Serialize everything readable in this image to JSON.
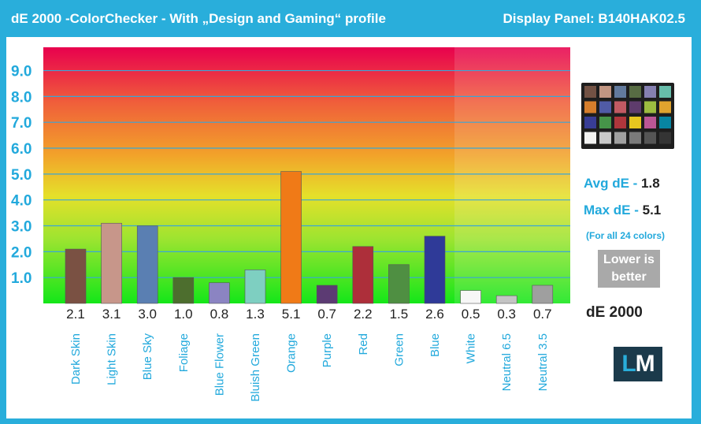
{
  "header": {
    "title": "dE 2000 -ColorChecker - With „Design and Gaming“ profile",
    "panel": "Display Panel: B140HAK02.5"
  },
  "sidebar": {
    "avg_label": "Avg dE - ",
    "avg_value": "1.8",
    "max_label": "Max dE - ",
    "max_value": "5.1",
    "note": "(For all 24 colors)",
    "lower_line1": "Lower is",
    "lower_line2": "better",
    "metric": "dE 2000",
    "logo_l": "L",
    "logo_m": "M"
  },
  "colors": {
    "accent": "#29aedb",
    "axis_text": "#22a9dc",
    "grid": "#3aa6d6"
  },
  "chart_data": {
    "type": "bar",
    "categories": [
      "Dark Skin",
      "Light Skin",
      "Blue Sky",
      "Foliage",
      "Blue Flower",
      "Bluish Green",
      "Orange",
      "Purple",
      "Red",
      "Green",
      "Blue",
      "White",
      "Neutral 6.5",
      "Neutral 3.5"
    ],
    "values": [
      2.1,
      3.1,
      3.0,
      1.0,
      0.8,
      1.3,
      5.1,
      0.7,
      2.2,
      1.5,
      2.6,
      0.5,
      0.3,
      0.7
    ],
    "value_labels": [
      "2.1",
      "3.1",
      "3.0",
      "1.0",
      "0.8",
      "1.3",
      "5.1",
      "0.7",
      "2.2",
      "1.5",
      "2.6",
      "0.5",
      "0.3",
      "0.7"
    ],
    "bar_colors": [
      "#7a5143",
      "#c7968a",
      "#5a7fb2",
      "#4d6e2e",
      "#8b84c2",
      "#7ecfc1",
      "#f07a17",
      "#5c3b73",
      "#ad2f3a",
      "#4f8f42",
      "#2f3a98",
      "#f7f7f7",
      "#c4c4c4",
      "#9f9f9f"
    ],
    "yticks": [
      "1.0",
      "2.0",
      "3.0",
      "4.0",
      "5.0",
      "6.0",
      "7.0",
      "8.0",
      "9.0"
    ],
    "ylim": [
      0,
      9.9
    ],
    "swatches": [
      [
        "#735244",
        "#c29682",
        "#627a9d",
        "#576c43",
        "#8580b1",
        "#67bdaa"
      ],
      [
        "#d67e2c",
        "#505ba6",
        "#c15a63",
        "#5e3c6c",
        "#9dbc40",
        "#e0a32e"
      ],
      [
        "#383d96",
        "#469449",
        "#af363c",
        "#e7c71f",
        "#bb5695",
        "#0885a1"
      ],
      [
        "#f3f3f2",
        "#c8c8c8",
        "#a0a0a0",
        "#7a7a7a",
        "#555555",
        "#343434"
      ]
    ]
  }
}
